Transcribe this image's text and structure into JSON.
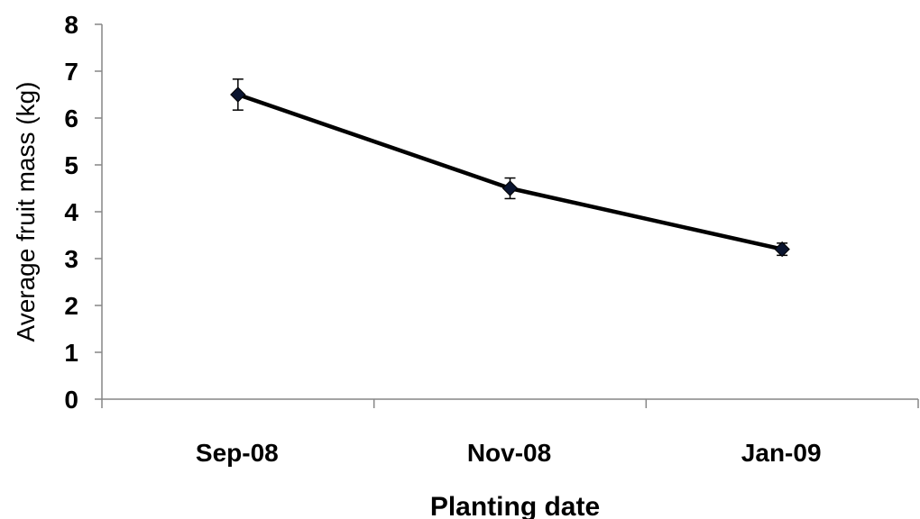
{
  "chart_data": {
    "type": "line",
    "categories": [
      "Sep-08",
      "Nov-08",
      "Jan-09"
    ],
    "series": [
      {
        "values": [
          6.5,
          4.5,
          3.2
        ],
        "error": [
          0.33,
          0.22,
          0.13
        ],
        "color": "#000000",
        "marker": "diamond"
      }
    ],
    "xlabel": "Planting date",
    "ylabel": "Average fruit mass (kg)",
    "ylim": [
      0,
      8
    ],
    "yticks": [
      0,
      1,
      2,
      3,
      4,
      5,
      6,
      7,
      8
    ],
    "grid": false,
    "legend": "none"
  }
}
